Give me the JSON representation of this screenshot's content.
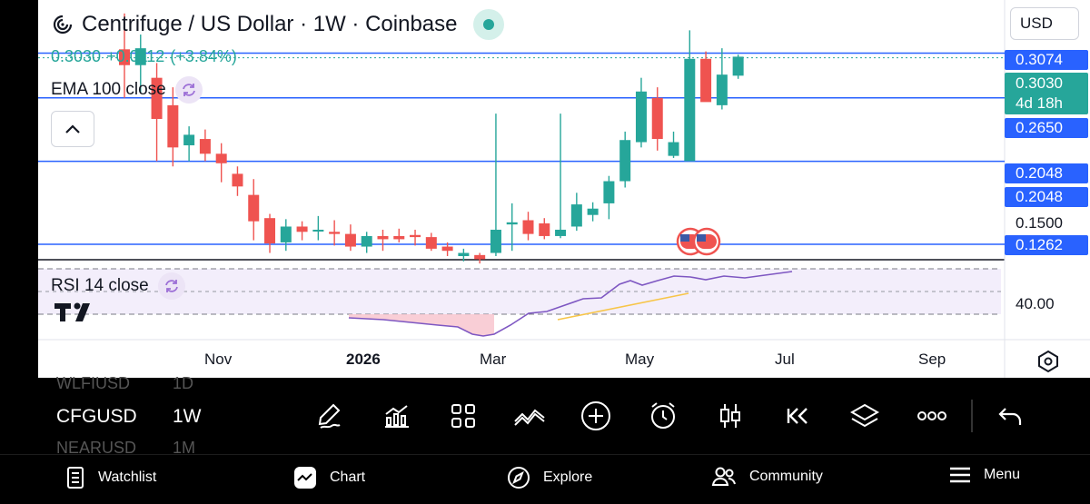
{
  "header": {
    "title": "Centrifuge / US Dollar · 1W · Coinbase",
    "price": "0.3030",
    "change": "+0.0112",
    "change_pct": "(+3.84%)",
    "currency": "USD"
  },
  "indicators": {
    "ema_label": "EMA 100 close",
    "rsi_label": "RSI 14 close",
    "rsi_value": "40.00"
  },
  "price_labels": {
    "p1": "0.3074",
    "p2_price": "0.3030",
    "p2_countdown": "4d 18h",
    "p3": "0.2650",
    "p4": "0.2048",
    "p5": "0.2048",
    "p6": "0.1500",
    "p7": "0.1262"
  },
  "chart_data": {
    "type": "candlestick",
    "title": "Centrifuge / US Dollar · 1W · Coinbase",
    "x_tick_labels": [
      "Nov",
      "2026",
      "Mar",
      "May",
      "Jul",
      "Sep"
    ],
    "horizontal_levels": [
      0.3074,
      0.265,
      0.2048,
      0.1262
    ],
    "last_price": 0.303,
    "rsi_levels": [
      70,
      30
    ],
    "candles": [
      {
        "o": 0.311,
        "h": 0.345,
        "l": 0.265,
        "c": 0.296
      },
      {
        "o": 0.296,
        "h": 0.325,
        "l": 0.27,
        "c": 0.312
      },
      {
        "o": 0.284,
        "h": 0.298,
        "l": 0.205,
        "c": 0.245
      },
      {
        "o": 0.258,
        "h": 0.275,
        "l": 0.2,
        "c": 0.218
      },
      {
        "o": 0.22,
        "h": 0.238,
        "l": 0.205,
        "c": 0.23
      },
      {
        "o": 0.226,
        "h": 0.235,
        "l": 0.205,
        "c": 0.212
      },
      {
        "o": 0.212,
        "h": 0.222,
        "l": 0.185,
        "c": 0.203
      },
      {
        "o": 0.193,
        "h": 0.2,
        "l": 0.172,
        "c": 0.181
      },
      {
        "o": 0.173,
        "h": 0.188,
        "l": 0.13,
        "c": 0.148
      },
      {
        "o": 0.151,
        "h": 0.155,
        "l": 0.118,
        "c": 0.127
      },
      {
        "o": 0.128,
        "h": 0.15,
        "l": 0.12,
        "c": 0.143
      },
      {
        "o": 0.143,
        "h": 0.148,
        "l": 0.13,
        "c": 0.138
      },
      {
        "o": 0.139,
        "h": 0.153,
        "l": 0.13,
        "c": 0.14
      },
      {
        "o": 0.138,
        "h": 0.149,
        "l": 0.125,
        "c": 0.136
      },
      {
        "o": 0.136,
        "h": 0.145,
        "l": 0.12,
        "c": 0.124
      },
      {
        "o": 0.124,
        "h": 0.138,
        "l": 0.118,
        "c": 0.134
      },
      {
        "o": 0.134,
        "h": 0.14,
        "l": 0.12,
        "c": 0.131
      },
      {
        "o": 0.134,
        "h": 0.141,
        "l": 0.128,
        "c": 0.131
      },
      {
        "o": 0.135,
        "h": 0.14,
        "l": 0.125,
        "c": 0.133
      },
      {
        "o": 0.133,
        "h": 0.137,
        "l": 0.12,
        "c": 0.122
      },
      {
        "o": 0.124,
        "h": 0.128,
        "l": 0.115,
        "c": 0.12
      },
      {
        "o": 0.115,
        "h": 0.122,
        "l": 0.11,
        "c": 0.118
      },
      {
        "o": 0.116,
        "h": 0.118,
        "l": 0.108,
        "c": 0.112
      },
      {
        "o": 0.118,
        "h": 0.25,
        "l": 0.115,
        "c": 0.14
      },
      {
        "o": 0.145,
        "h": 0.165,
        "l": 0.12,
        "c": 0.147
      },
      {
        "o": 0.149,
        "h": 0.157,
        "l": 0.13,
        "c": 0.136
      },
      {
        "o": 0.146,
        "h": 0.151,
        "l": 0.131,
        "c": 0.134
      },
      {
        "o": 0.134,
        "h": 0.25,
        "l": 0.132,
        "c": 0.14
      },
      {
        "o": 0.143,
        "h": 0.175,
        "l": 0.139,
        "c": 0.164
      },
      {
        "o": 0.154,
        "h": 0.166,
        "l": 0.148,
        "c": 0.16
      },
      {
        "o": 0.165,
        "h": 0.191,
        "l": 0.15,
        "c": 0.186
      },
      {
        "o": 0.186,
        "h": 0.233,
        "l": 0.18,
        "c": 0.225
      },
      {
        "o": 0.223,
        "h": 0.284,
        "l": 0.218,
        "c": 0.271
      },
      {
        "o": 0.265,
        "h": 0.275,
        "l": 0.215,
        "c": 0.226
      },
      {
        "o": 0.21,
        "h": 0.233,
        "l": 0.208,
        "c": 0.223
      },
      {
        "o": 0.205,
        "h": 0.329,
        "l": 0.205,
        "c": 0.302
      },
      {
        "o": 0.302,
        "h": 0.309,
        "l": 0.262,
        "c": 0.261
      },
      {
        "o": 0.258,
        "h": 0.312,
        "l": 0.254,
        "c": 0.287
      },
      {
        "o": 0.286,
        "h": 0.306,
        "l": 0.283,
        "c": 0.304
      }
    ]
  },
  "symbols": {
    "prev": {
      "symbol": "WLFIUSD",
      "tf": "1D"
    },
    "current": {
      "symbol": "CFGUSD",
      "tf": "1W"
    },
    "next": {
      "symbol": "NEARUSD",
      "tf": "1M"
    }
  },
  "toolbar_icons": [
    "draw-icon",
    "indicators-icon",
    "templates-icon",
    "compare-icon",
    "add-icon",
    "alert-icon",
    "candles-icon",
    "replay-icon",
    "layers-icon",
    "more-icon",
    "undo-icon"
  ],
  "bottom_nav": {
    "watchlist": "Watchlist",
    "chart": "Chart",
    "explore": "Explore",
    "community": "Community",
    "menu": "Menu"
  },
  "colors": {
    "up": "#26a69a",
    "down": "#ef5350",
    "level_line": "#2962ff",
    "rsi_line": "#7e57c2",
    "rsi_ma": "#f7c548"
  }
}
